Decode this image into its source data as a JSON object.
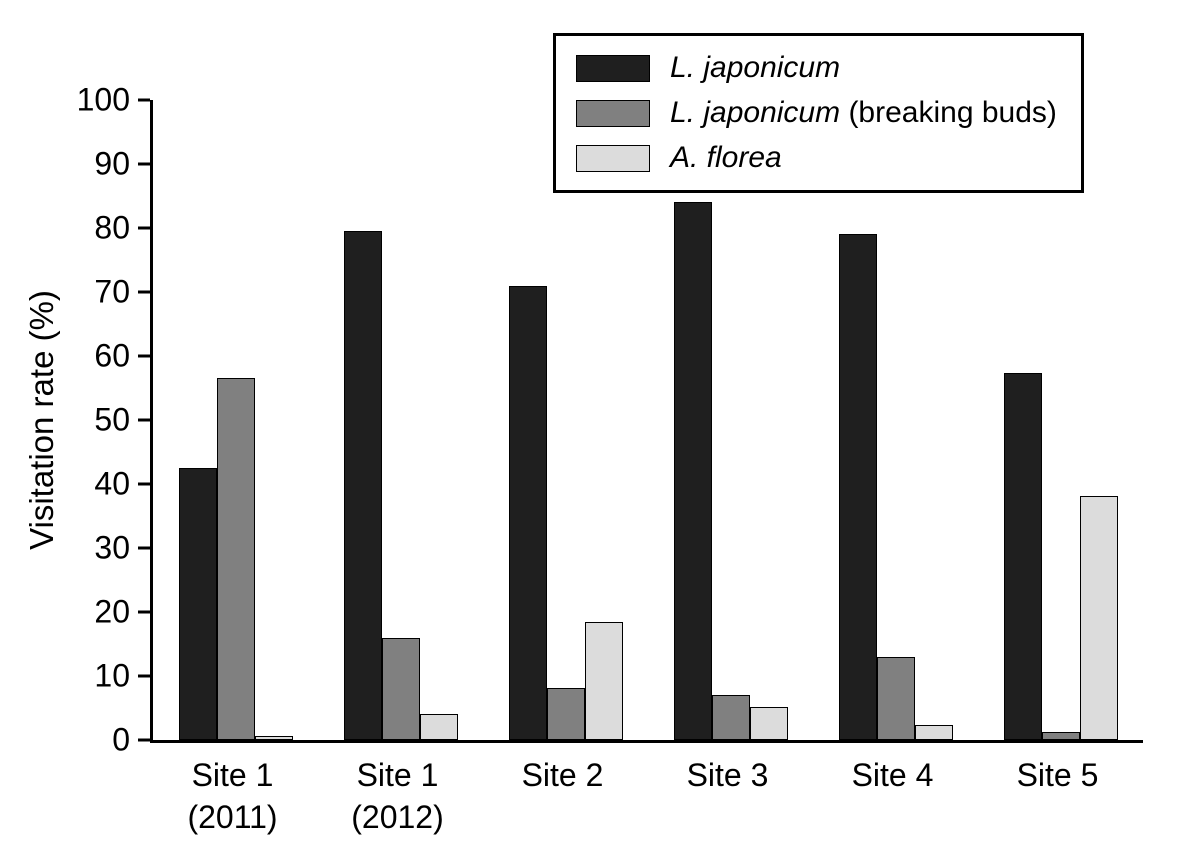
{
  "chart_data": {
    "type": "bar",
    "title": "",
    "xlabel": "",
    "ylabel": "Visitation rate (%)",
    "ylim": [
      0,
      100
    ],
    "y_ticks": [
      0,
      10,
      20,
      30,
      40,
      50,
      60,
      70,
      80,
      90,
      100
    ],
    "grid": false,
    "legend_position": "top-right",
    "categories": [
      "Site 1\n(2011)",
      "Site 1\n(2012)",
      "Site 2",
      "Site 3",
      "Site 4",
      "Site 5"
    ],
    "series": [
      {
        "name": "L. japonicum",
        "name_suffix": "",
        "color": "#1f1f1f",
        "values": [
          42.5,
          79.5,
          71,
          84,
          79,
          57.3
        ]
      },
      {
        "name": "L. japonicum",
        "name_suffix": " (breaking buds)",
        "color": "#808080",
        "values": [
          56.5,
          16,
          8.2,
          7,
          13,
          1.2
        ]
      },
      {
        "name": "A. florea",
        "name_suffix": "",
        "color": "#dcdcdc",
        "values": [
          0.7,
          4,
          18.5,
          5.2,
          2.3,
          38.2
        ]
      }
    ]
  },
  "colors": {
    "axis": "#000000",
    "bar_border": "#000000",
    "background": "#ffffff"
  }
}
